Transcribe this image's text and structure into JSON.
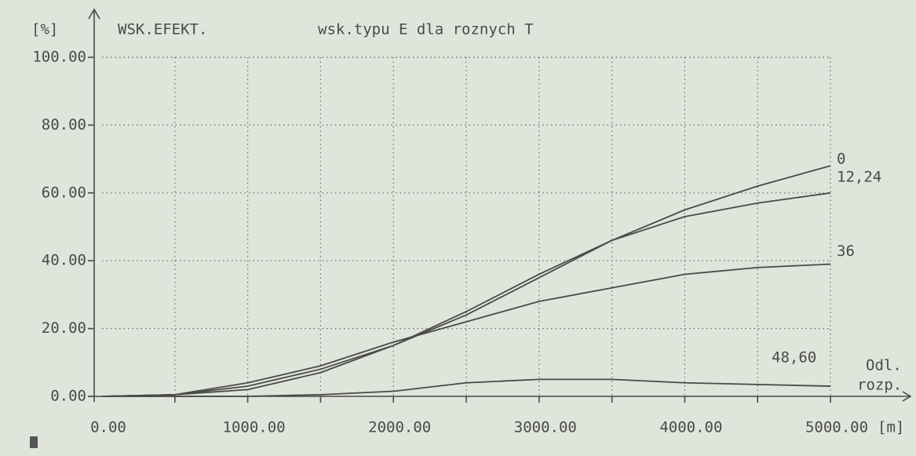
{
  "chart_data": {
    "type": "line",
    "title": "WSK.EFEKT.",
    "subtitle": "wsk.typu E dla roznych T",
    "y_label": "[%]",
    "x_label": [
      "Odl.",
      "rozp."
    ],
    "x_unit": "[m]",
    "x": [
      0,
      500,
      1000,
      1500,
      2000,
      2500,
      3000,
      3500,
      4000,
      4500,
      5000
    ],
    "series": [
      {
        "name": "0",
        "color": "#4a4a4a",
        "values": [
          0,
          0.5,
          3,
          8,
          15,
          25,
          36,
          46,
          55,
          62,
          68
        ]
      },
      {
        "name": "12,24",
        "color": "#4a4a4a",
        "values": [
          0,
          0.5,
          2,
          7,
          15,
          24,
          35,
          46,
          53,
          57,
          60
        ]
      },
      {
        "name": "36",
        "color": "#4a4a4a",
        "values": [
          0,
          0.5,
          4,
          9,
          16,
          22,
          28,
          32,
          36,
          38,
          39
        ]
      },
      {
        "name": "48,60",
        "color": "#4a4a4a",
        "values": [
          0,
          0,
          0,
          0.5,
          1.5,
          4,
          5,
          5,
          4,
          3.5,
          3
        ]
      }
    ],
    "xlim": [
      0,
      5000
    ],
    "xticks": [
      {
        "value": 0,
        "label": "0.00"
      },
      {
        "value": 1000,
        "label": "1000.00"
      },
      {
        "value": 2000,
        "label": "2000.00"
      },
      {
        "value": 3000,
        "label": "3000.00"
      },
      {
        "value": 4000,
        "label": "4000.00"
      },
      {
        "value": 5000,
        "label": "5000.00"
      }
    ],
    "xgrid": [
      500,
      1000,
      1500,
      2000,
      2500,
      3000,
      3500,
      4000,
      4500,
      5000
    ],
    "ylim": [
      0,
      100
    ],
    "yticks": [
      {
        "value": 0,
        "label": "0.00"
      },
      {
        "value": 20,
        "label": "20.00"
      },
      {
        "value": 40,
        "label": "40.00"
      },
      {
        "value": 60,
        "label": "60.00"
      },
      {
        "value": 80,
        "label": "80.00"
      },
      {
        "value": 100,
        "label": "100.00"
      }
    ],
    "grid": true
  }
}
